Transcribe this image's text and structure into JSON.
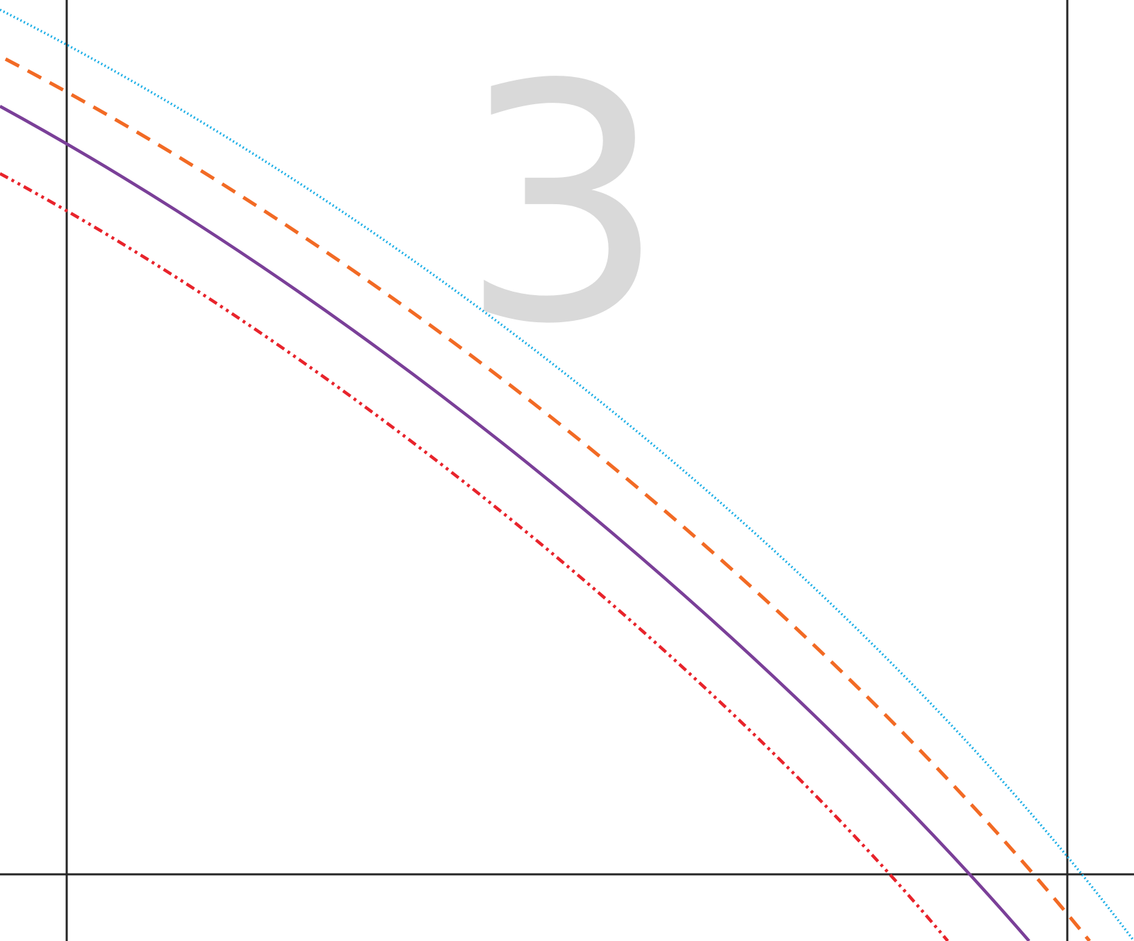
{
  "label": "3",
  "colors": {
    "label": "#d9d9d9",
    "guides": "#262626",
    "curve_blue": "#1aaee6",
    "curve_orange": "#f26a24",
    "curve_purple": "#7a3f98",
    "curve_red": "#e8232b"
  },
  "guides": {
    "vertical_count": 2,
    "horizontal_count": 1
  },
  "curves": [
    {
      "id": "curve-blue",
      "style": "dotted"
    },
    {
      "id": "curve-orange",
      "style": "dashed"
    },
    {
      "id": "curve-purple",
      "style": "solid"
    },
    {
      "id": "curve-red",
      "style": "dash-dot-dot"
    }
  ]
}
